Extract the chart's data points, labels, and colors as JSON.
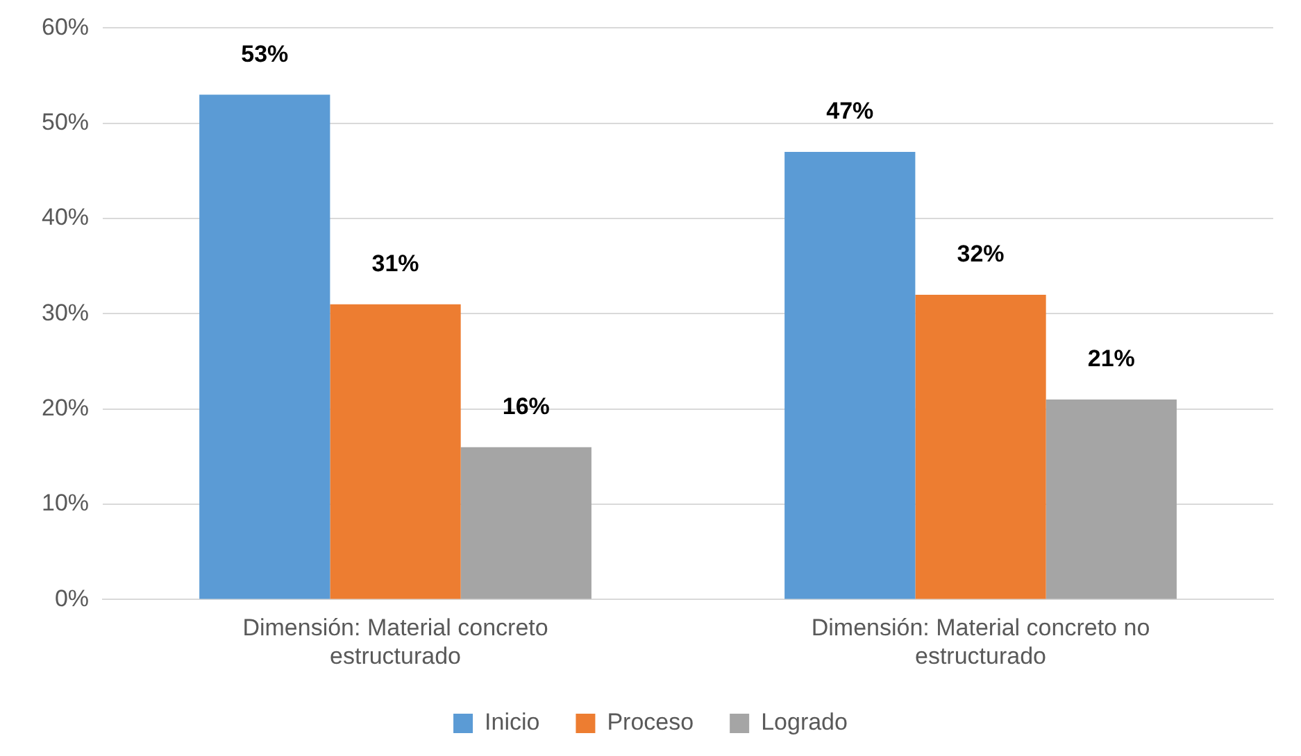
{
  "chart_data": {
    "type": "bar",
    "categories": [
      "Dimensión: Material concreto estructurado",
      "Dimensión: Material concreto no estructurado"
    ],
    "series": [
      {
        "name": "Inicio",
        "color": "#5b9bd5",
        "values": [
          53,
          47
        ],
        "value_labels": [
          "53%",
          "47%"
        ]
      },
      {
        "name": "Proceso",
        "color": "#ed7d31",
        "values": [
          31,
          32
        ],
        "value_labels": [
          "31%",
          "32%"
        ]
      },
      {
        "name": "Logrado",
        "color": "#a5a5a5",
        "values": [
          16,
          21
        ],
        "value_labels": [
          "16%",
          "21%"
        ]
      }
    ],
    "ylim": [
      0,
      60
    ],
    "yticks": [
      {
        "value": 0,
        "label": "0%"
      },
      {
        "value": 10,
        "label": "10%"
      },
      {
        "value": 20,
        "label": "20%"
      },
      {
        "value": 30,
        "label": "30%"
      },
      {
        "value": 40,
        "label": "40%"
      },
      {
        "value": 50,
        "label": "50%"
      },
      {
        "value": 60,
        "label": "60%"
      }
    ],
    "grid": "y",
    "legend": "bottom"
  }
}
